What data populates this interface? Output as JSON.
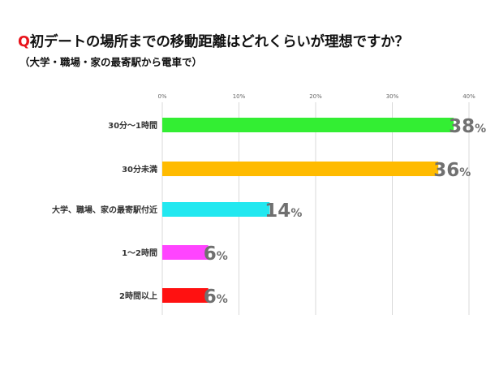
{
  "title_prefix": "Q",
  "title": "初デートの場所までの移動距離はどれくらいが理想ですか？",
  "subtitle": "（大学・職場・家の最寄駅から電車で）",
  "chart_data": {
    "type": "bar",
    "orientation": "horizontal",
    "categories": [
      "30分～1時間",
      "30分未満",
      "大学、職場、家の最寄駅付近",
      "1～2時間",
      "2時間以上"
    ],
    "values": [
      38,
      36,
      14,
      6,
      6
    ],
    "data_labels": [
      "38",
      "36",
      "14",
      "6",
      "6"
    ],
    "value_unit": "%",
    "colors": [
      "#33ee33",
      "#ffbb00",
      "#22e8f0",
      "#ff44ff",
      "#ff1111"
    ],
    "xlim": [
      0,
      40
    ],
    "xticks": [
      0,
      10,
      20,
      30,
      40
    ],
    "xtick_labels": [
      "0%",
      "10%",
      "20%",
      "30%",
      "40%"
    ],
    "grid": "vertical",
    "legend": "none"
  }
}
